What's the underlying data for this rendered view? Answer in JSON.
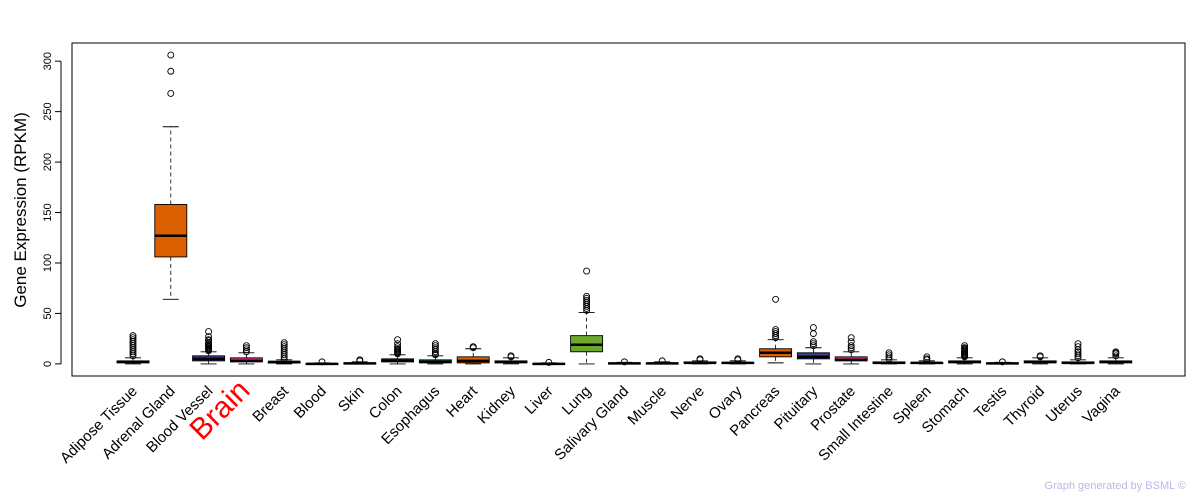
{
  "chart_data": {
    "type": "box",
    "ylabel": "Gene Expression (RPKM)",
    "ylim": [
      -12,
      318
    ],
    "yticks": [
      0,
      50,
      100,
      150,
      200,
      250,
      300
    ],
    "highlight_category": "Brain",
    "highlight_color": "#ff0000",
    "categories": [
      {
        "name": "Adipose Tissue",
        "color": "#ffffff",
        "q1": 1,
        "median": 2,
        "q3": 3,
        "whisker_low": 0,
        "whisker_high": 6,
        "outliers": [
          8,
          10,
          12,
          14,
          16,
          18,
          20,
          22,
          24,
          26,
          28
        ]
      },
      {
        "name": "Adrenal Gland",
        "color": "#dd6000",
        "q1": 106,
        "median": 127,
        "q3": 158,
        "whisker_low": 64,
        "whisker_high": 235,
        "outliers": [
          268,
          290,
          306
        ]
      },
      {
        "name": "Blood Vessel",
        "color": "#3b3b8f",
        "q1": 3,
        "median": 5,
        "q3": 8,
        "whisker_low": 0,
        "whisker_high": 12,
        "outliers": [
          13,
          14,
          15,
          16,
          17,
          18,
          19,
          20,
          21,
          23,
          24,
          27,
          32
        ]
      },
      {
        "name": "Brain",
        "color": "#e7298a",
        "q1": 2,
        "median": 3,
        "q3": 6,
        "whisker_low": 0,
        "whisker_high": 11,
        "outliers": [
          12,
          14,
          16,
          18
        ]
      },
      {
        "name": "Breast",
        "color": "#ffffff",
        "q1": 1,
        "median": 2,
        "q3": 2,
        "whisker_low": 0,
        "whisker_high": 4,
        "outliers": [
          5,
          7,
          9,
          11,
          13,
          15,
          17,
          19,
          21
        ]
      },
      {
        "name": "Blood",
        "color": "#ffffff",
        "q1": 0,
        "median": 0,
        "q3": 0.5,
        "whisker_low": 0,
        "whisker_high": 1,
        "outliers": [
          2
        ]
      },
      {
        "name": "Skin",
        "color": "#ffffff",
        "q1": 0,
        "median": 0.5,
        "q3": 1,
        "whisker_low": 0,
        "whisker_high": 2,
        "outliers": [
          3,
          4
        ]
      },
      {
        "name": "Colon",
        "color": "#1b3a66",
        "q1": 2,
        "median": 3,
        "q3": 5,
        "whisker_low": 0,
        "whisker_high": 9,
        "outliers": [
          10,
          11,
          12,
          13,
          14,
          15,
          17,
          20,
          24
        ]
      },
      {
        "name": "Esophagus",
        "color": "#1b7e5f",
        "q1": 1,
        "median": 2,
        "q3": 4,
        "whisker_low": 0,
        "whisker_high": 8,
        "outliers": [
          9,
          10,
          12,
          14,
          16,
          18,
          20
        ]
      },
      {
        "name": "Heart",
        "color": "#dd6000",
        "q1": 1,
        "median": 3,
        "q3": 7,
        "whisker_low": 0,
        "whisker_high": 15,
        "outliers": [
          16,
          17
        ]
      },
      {
        "name": "Kidney",
        "color": "#ffffff",
        "q1": 1,
        "median": 2,
        "q3": 3,
        "whisker_low": 0,
        "whisker_high": 6,
        "outliers": [
          7,
          8
        ]
      },
      {
        "name": "Liver",
        "color": "#ffffff",
        "q1": 0,
        "median": 0,
        "q3": 0.5,
        "whisker_low": 0,
        "whisker_high": 1,
        "outliers": [
          1.5
        ]
      },
      {
        "name": "Lung",
        "color": "#6aa82d",
        "q1": 12,
        "median": 19,
        "q3": 28,
        "whisker_low": 0,
        "whisker_high": 51,
        "outliers": [
          53,
          55,
          57,
          59,
          61,
          63,
          65,
          67,
          92
        ]
      },
      {
        "name": "Salivary Gland",
        "color": "#ffffff",
        "q1": 0,
        "median": 0.5,
        "q3": 1,
        "whisker_low": 0,
        "whisker_high": 1.5,
        "outliers": [
          2
        ]
      },
      {
        "name": "Muscle",
        "color": "#ffffff",
        "q1": 0,
        "median": 0.5,
        "q3": 1,
        "whisker_low": 0,
        "whisker_high": 2,
        "outliers": [
          3
        ]
      },
      {
        "name": "Nerve",
        "color": "#ffffff",
        "q1": 1,
        "median": 1,
        "q3": 2,
        "whisker_low": 0,
        "whisker_high": 3,
        "outliers": [
          4,
          5
        ]
      },
      {
        "name": "Ovary",
        "color": "#ffffff",
        "q1": 0.5,
        "median": 1,
        "q3": 1.5,
        "whisker_low": 0,
        "whisker_high": 3,
        "outliers": [
          4,
          5
        ]
      },
      {
        "name": "Pancreas",
        "color": "#dd6000",
        "q1": 7,
        "median": 11,
        "q3": 15,
        "whisker_low": 1,
        "whisker_high": 24,
        "outliers": [
          26,
          28,
          30,
          32,
          34,
          64
        ]
      },
      {
        "name": "Pituitary",
        "color": "#3b3b8f",
        "q1": 5,
        "median": 7,
        "q3": 11,
        "whisker_low": 0,
        "whisker_high": 16,
        "outliers": [
          18,
          20,
          22,
          30,
          36
        ]
      },
      {
        "name": "Prostate",
        "color": "#e7298a",
        "q1": 3,
        "median": 4,
        "q3": 7,
        "whisker_low": 0,
        "whisker_high": 12,
        "outliers": [
          14,
          16,
          18,
          22,
          26
        ]
      },
      {
        "name": "Small Intestine",
        "color": "#ffffff",
        "q1": 0.5,
        "median": 1,
        "q3": 2,
        "whisker_low": 0,
        "whisker_high": 4,
        "outliers": [
          5,
          7,
          9,
          11
        ]
      },
      {
        "name": "Spleen",
        "color": "#ffffff",
        "q1": 0.5,
        "median": 1,
        "q3": 1.5,
        "whisker_low": 0,
        "whisker_high": 3,
        "outliers": [
          4,
          5,
          7
        ]
      },
      {
        "name": "Stomach",
        "color": "#1b7e5f",
        "q1": 1,
        "median": 2,
        "q3": 3,
        "whisker_low": 0,
        "whisker_high": 6,
        "outliers": [
          7,
          8,
          9,
          10,
          11,
          12,
          13,
          14,
          15,
          16,
          18
        ]
      },
      {
        "name": "Testis",
        "color": "#ffffff",
        "q1": 0,
        "median": 0.5,
        "q3": 1,
        "whisker_low": 0,
        "whisker_high": 1.5,
        "outliers": [
          2
        ]
      },
      {
        "name": "Thyroid",
        "color": "#ffffff",
        "q1": 1,
        "median": 2,
        "q3": 3,
        "whisker_low": 0,
        "whisker_high": 6,
        "outliers": [
          7,
          8
        ]
      },
      {
        "name": "Uterus",
        "color": "#ffffff",
        "q1": 0.5,
        "median": 1,
        "q3": 2,
        "whisker_low": 0,
        "whisker_high": 4,
        "outliers": [
          6,
          8,
          10,
          12,
          14,
          17,
          20
        ]
      },
      {
        "name": "Vagina",
        "color": "#1b3a66",
        "q1": 1,
        "median": 2,
        "q3": 3,
        "whisker_low": 0,
        "whisker_high": 6,
        "outliers": [
          8,
          10,
          11,
          12
        ]
      }
    ]
  },
  "footer": {
    "credit": "Graph generated by BSML ©"
  }
}
